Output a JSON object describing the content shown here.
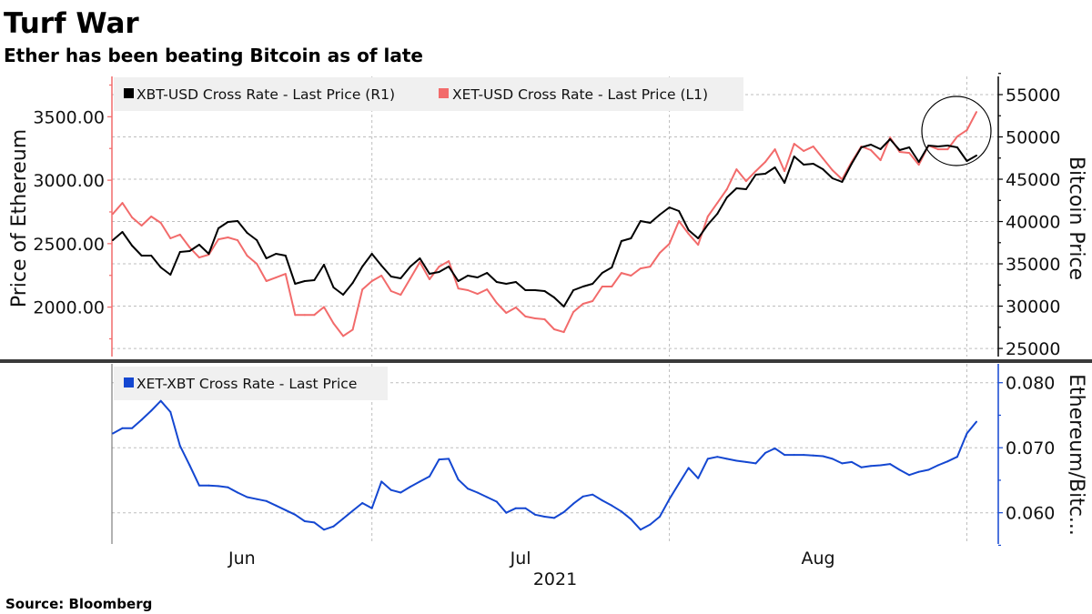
{
  "title": "Turf War",
  "subtitle": "Ether has been beating Bitcoin as of late",
  "source": "Source: Bloomberg",
  "chart_data": [
    {
      "type": "line",
      "panel": "top",
      "ylabel_left": "Price of Ethereum",
      "ylabel_right": "Bitcoin Price",
      "left_axis": {
        "ylim": [
          1610,
          3818
        ],
        "ticks": [
          2000,
          2500,
          3000,
          3500
        ],
        "tick_labels": [
          "2000.00",
          "2500.00",
          "3000.00",
          "3500.00"
        ],
        "color": "#f26b6b"
      },
      "right_axis": {
        "ylim": [
          24040,
          57150
        ],
        "ticks": [
          25000,
          30000,
          35000,
          40000,
          45000,
          50000,
          55000
        ],
        "tick_labels": [
          "25000",
          "30000",
          "35000",
          "40000",
          "45000",
          "50000",
          "55000"
        ],
        "color": "#000000"
      },
      "grid": true,
      "legend_placement": "top-left",
      "annotation": "circle around the last days of August",
      "series": [
        {
          "name": "XBT-USD Cross Rate - Last Price (R1)",
          "axis": "right",
          "color": "#000000",
          "values": [
            37800,
            38770,
            37155,
            35970,
            35970,
            34575,
            33715,
            36400,
            36510,
            37260,
            36190,
            39200,
            39950,
            40060,
            38660,
            37800,
            35650,
            36190,
            35970,
            32640,
            32960,
            33070,
            34900,
            32210,
            31350,
            32750,
            34680,
            36190,
            34790,
            33500,
            33285,
            34680,
            35650,
            33825,
            34040,
            34680,
            32960,
            33610,
            33390,
            33930,
            32855,
            32640,
            32855,
            31890,
            31890,
            31780,
            31030,
            29950,
            31890,
            32320,
            32640,
            33930,
            34575,
            37690,
            38015,
            40060,
            39840,
            40810,
            41670,
            41240,
            38980,
            38015,
            39630,
            40920,
            42850,
            43925,
            43820,
            45540,
            45650,
            46400,
            44570,
            47690,
            46725,
            46830,
            46185,
            45110,
            44680,
            46830,
            48765,
            49090,
            48550,
            49730,
            48440,
            48765,
            47045,
            48980,
            48870,
            48980,
            48765,
            47150,
            47800
          ]
        },
        {
          "name": "XET-USD Cross Rate - Last Price (L1)",
          "axis": "left",
          "color": "#f26b6b",
          "values": [
            2735,
            2821,
            2707,
            2642,
            2714,
            2664,
            2542,
            2571,
            2470,
            2391,
            2413,
            2534,
            2549,
            2527,
            2405,
            2341,
            2205,
            2233,
            2262,
            1938,
            1938,
            1938,
            2001,
            1872,
            1772,
            1822,
            2138,
            2205,
            2248,
            2126,
            2097,
            2226,
            2355,
            2219,
            2319,
            2362,
            2147,
            2133,
            2104,
            2140,
            2033,
            1954,
            1997,
            1926,
            1911,
            1904,
            1825,
            1803,
            1961,
            2026,
            2047,
            2162,
            2162,
            2269,
            2248,
            2305,
            2319,
            2427,
            2499,
            2678,
            2577,
            2491,
            2714,
            2821,
            2929,
            3086,
            2993,
            3072,
            3144,
            3244,
            3072,
            3287,
            3230,
            3266,
            3172,
            3079,
            3007,
            3144,
            3266,
            3237,
            3158,
            3337,
            3223,
            3215,
            3122,
            3273,
            3244,
            3244,
            3344,
            3394,
            3538
          ]
        }
      ]
    },
    {
      "type": "line",
      "panel": "bottom",
      "ylabel_right": "Ethereum/Bitc...",
      "right_axis": {
        "ylim": [
          0.0552,
          0.0829
        ],
        "ticks": [
          0.06,
          0.07,
          0.08
        ],
        "tick_labels": [
          "0.060",
          "0.070",
          "0.080"
        ],
        "color": "#1447d1"
      },
      "grid": true,
      "legend_placement": "top-left",
      "series": [
        {
          "name": "XET-XBT Cross Rate - Last Price",
          "axis": "right",
          "color": "#1447d1",
          "values": [
            0.0722,
            0.073,
            0.073,
            0.0743,
            0.0757,
            0.0772,
            0.0755,
            0.0703,
            0.0673,
            0.0642,
            0.0642,
            0.0641,
            0.0639,
            0.0631,
            0.0624,
            0.0621,
            0.0618,
            0.0611,
            0.0604,
            0.0597,
            0.0587,
            0.0585,
            0.0574,
            0.0579,
            0.0591,
            0.0603,
            0.0615,
            0.0607,
            0.0648,
            0.0635,
            0.0631,
            0.064,
            0.0648,
            0.0656,
            0.0682,
            0.0683,
            0.0651,
            0.0637,
            0.0631,
            0.0624,
            0.0617,
            0.06,
            0.0607,
            0.0607,
            0.0597,
            0.0594,
            0.0592,
            0.0601,
            0.0614,
            0.0625,
            0.0628,
            0.0619,
            0.0611,
            0.0602,
            0.059,
            0.0574,
            0.0582,
            0.0594,
            0.0621,
            0.0645,
            0.0669,
            0.0653,
            0.0683,
            0.0686,
            0.0683,
            0.068,
            0.0678,
            0.0676,
            0.0692,
            0.0699,
            0.0689,
            0.0689,
            0.0689,
            0.0688,
            0.0687,
            0.0683,
            0.0676,
            0.0678,
            0.067,
            0.0672,
            0.0673,
            0.0675,
            0.0666,
            0.0658,
            0.0663,
            0.0666,
            0.0673,
            0.0679,
            0.0686,
            0.0722,
            0.074
          ]
        }
      ]
    }
  ],
  "x_axis": {
    "dates": [
      "2021-06-04",
      "2021-06-05",
      "2021-06-06",
      "2021-06-07",
      "2021-06-08",
      "2021-06-09",
      "2021-06-10",
      "2021-06-11",
      "2021-06-12",
      "2021-06-13",
      "2021-06-14",
      "2021-06-15",
      "2021-06-16",
      "2021-06-17",
      "2021-06-18",
      "2021-06-19",
      "2021-06-20",
      "2021-06-21",
      "2021-06-22",
      "2021-06-23",
      "2021-06-24",
      "2021-06-25",
      "2021-06-26",
      "2021-06-27",
      "2021-06-28",
      "2021-06-29",
      "2021-06-30",
      "2021-07-01",
      "2021-07-02",
      "2021-07-03",
      "2021-07-04",
      "2021-07-05",
      "2021-07-06",
      "2021-07-07",
      "2021-07-08",
      "2021-07-09",
      "2021-07-10",
      "2021-07-11",
      "2021-07-12",
      "2021-07-13",
      "2021-07-14",
      "2021-07-15",
      "2021-07-16",
      "2021-07-17",
      "2021-07-18",
      "2021-07-19",
      "2021-07-20",
      "2021-07-21",
      "2021-07-22",
      "2021-07-23",
      "2021-07-24",
      "2021-07-25",
      "2021-07-26",
      "2021-07-27",
      "2021-07-28",
      "2021-07-29",
      "2021-07-30",
      "2021-07-31",
      "2021-08-01",
      "2021-08-02",
      "2021-08-03",
      "2021-08-04",
      "2021-08-05",
      "2021-08-06",
      "2021-08-07",
      "2021-08-08",
      "2021-08-09",
      "2021-08-10",
      "2021-08-11",
      "2021-08-12",
      "2021-08-13",
      "2021-08-14",
      "2021-08-15",
      "2021-08-16",
      "2021-08-17",
      "2021-08-18",
      "2021-08-19",
      "2021-08-20",
      "2021-08-21",
      "2021-08-22",
      "2021-08-23",
      "2021-08-24",
      "2021-08-25",
      "2021-08-26",
      "2021-08-27",
      "2021-08-28",
      "2021-08-29",
      "2021-08-30",
      "2021-08-31",
      "2021-09-01",
      "2021-09-02"
    ],
    "month_labels": [
      "Jun",
      "Jul",
      "Aug"
    ],
    "year_label": "2021",
    "gridlines": [
      "2021-07-01",
      "2021-08-01",
      "2021-09-01"
    ]
  }
}
